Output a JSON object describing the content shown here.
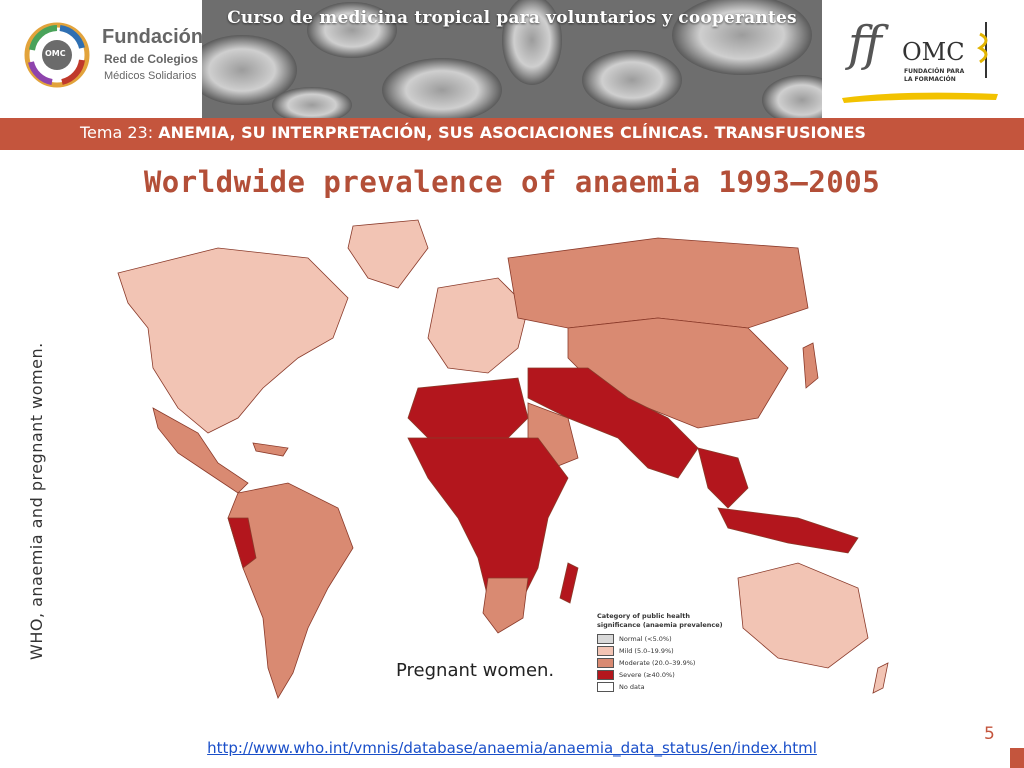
{
  "header": {
    "banner_title": "Curso de medicina tropical para voluntarios y cooperantes",
    "left_logo": {
      "line1": "Fundación",
      "line2": "Red de Colegios",
      "line3": "Médicos Solidarios",
      "badge": "OMC"
    },
    "right_logo": {
      "mark": "ff",
      "name": "OMC",
      "line1": "FUNDACIÓN PARA",
      "line2": "LA FORMACIÓN"
    }
  },
  "tema": {
    "label": "Tema 23:",
    "title": "ANEMIA, SU INTERPRETACIÓN, SUS ASOCIACIONES CLÍNICAS. TRANSFUSIONES"
  },
  "slide": {
    "title": "Worldwide prevalence of anaemia 1993–2005",
    "side_text": "WHO, anaemia and pregnant women.",
    "caption": "Pregnant women.",
    "url": "http://www.who.int/vmnis/database/anaemia/anaemia_data_status/en/index.html",
    "page_number": "5"
  },
  "legend": {
    "title_line1": "Category of public health",
    "title_line2": "significance (anaemia prevalence)",
    "items": [
      {
        "label": "Normal (<5.0%)",
        "color": "#d9d9d9"
      },
      {
        "label": "Mild (5.0–19.9%)",
        "color": "#f2c4b4"
      },
      {
        "label": "Moderate (20.0–39.9%)",
        "color": "#d98a72"
      },
      {
        "label": "Severe (≥40.0%)",
        "color": "#b3161d"
      },
      {
        "label": "No data",
        "color": "#ffffff"
      }
    ]
  },
  "colors": {
    "accent": "#c4553d",
    "title": "#b34f38",
    "mild": "#f2c4b4",
    "moderate": "#d98a72",
    "severe": "#b3161d",
    "link": "#1a4fc9"
  }
}
